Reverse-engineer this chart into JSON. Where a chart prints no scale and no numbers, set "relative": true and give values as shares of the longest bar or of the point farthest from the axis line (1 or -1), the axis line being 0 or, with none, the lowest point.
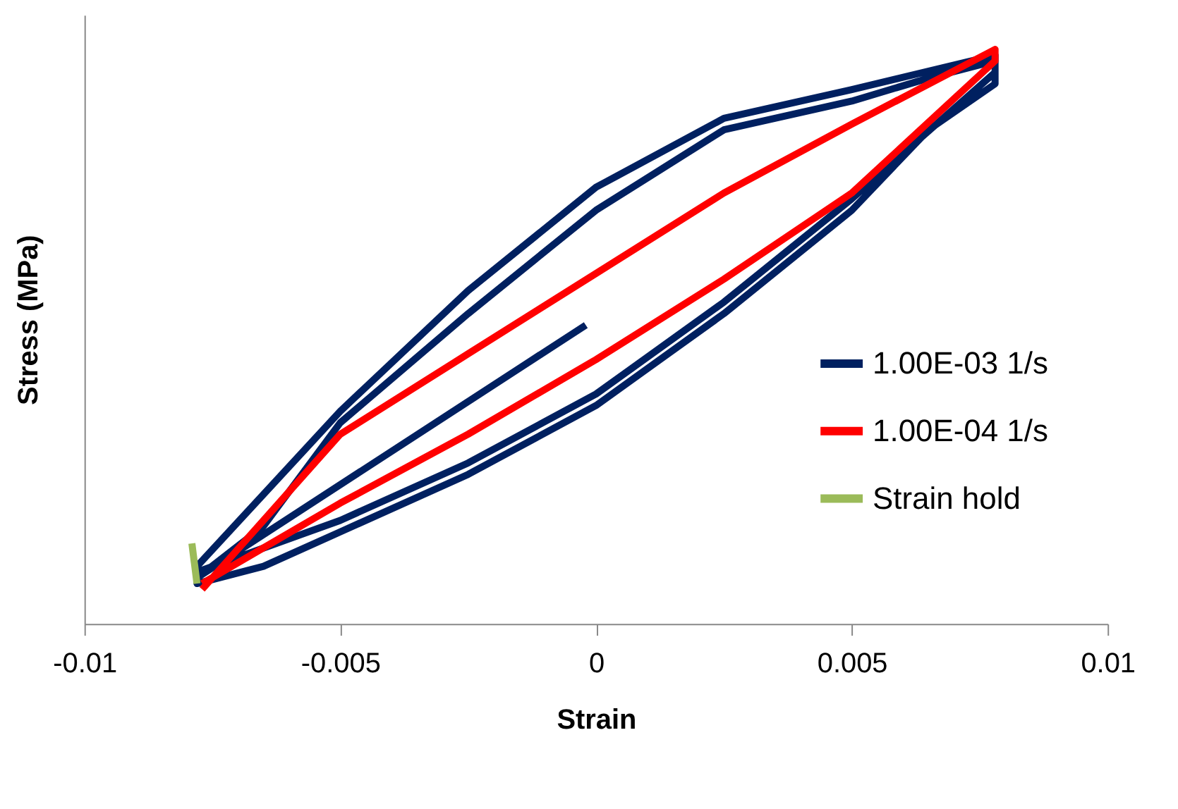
{
  "chart_data": {
    "type": "line",
    "relative": true,
    "xlabel": "Strain",
    "ylabel": "Stress (MPa)",
    "xlim": [
      -0.01,
      0.01
    ],
    "xticks": [
      -0.01,
      -0.005,
      0,
      0.005,
      0.01
    ],
    "grid": false,
    "legend": "right",
    "marker": "none",
    "line_style": "solid",
    "series": [
      {
        "name": "1.00E-03 1/s",
        "color": "#002060",
        "x": [
          -0.0002,
          -0.0078,
          -0.0065,
          -0.005,
          -0.0025,
          0,
          0.0025,
          0.005,
          0.0065,
          0.0078,
          0.0078,
          0.0065,
          0.005,
          0.0025,
          0,
          -0.0025,
          -0.005,
          -0.0065,
          -0.0078,
          -0.0078,
          -0.005,
          -0.0025,
          0,
          0.0025,
          0.005,
          0.0078,
          0.0078,
          0.005,
          0.0025,
          0,
          -0.0025,
          -0.005,
          -0.0078
        ],
        "values": [
          0.52,
          0.08,
          0.17,
          0.35,
          0.54,
          0.72,
          0.86,
          0.91,
          0.95,
          0.98,
          0.94,
          0.86,
          0.72,
          0.54,
          0.38,
          0.26,
          0.16,
          0.1,
          0.07,
          0.1,
          0.37,
          0.58,
          0.76,
          0.88,
          0.93,
          0.99,
          0.96,
          0.74,
          0.56,
          0.4,
          0.28,
          0.18,
          0.09
        ]
      },
      {
        "name": "1.00E-04 1/s",
        "color": "#ff0000",
        "x": [
          -0.0077,
          -0.005,
          -0.0025,
          0,
          0.0025,
          0.005,
          0.0078,
          0.0078,
          0.005,
          0.0025,
          0,
          -0.0025,
          -0.005,
          -0.0077
        ],
        "values": [
          0.06,
          0.33,
          0.47,
          0.61,
          0.75,
          0.87,
          1.0,
          0.98,
          0.75,
          0.6,
          0.46,
          0.33,
          0.21,
          0.07
        ]
      },
      {
        "name": "Strain hold",
        "color": "#9bbb59",
        "x": [
          -0.0079,
          -0.0078
        ],
        "values": [
          0.14,
          0.07
        ]
      }
    ]
  }
}
